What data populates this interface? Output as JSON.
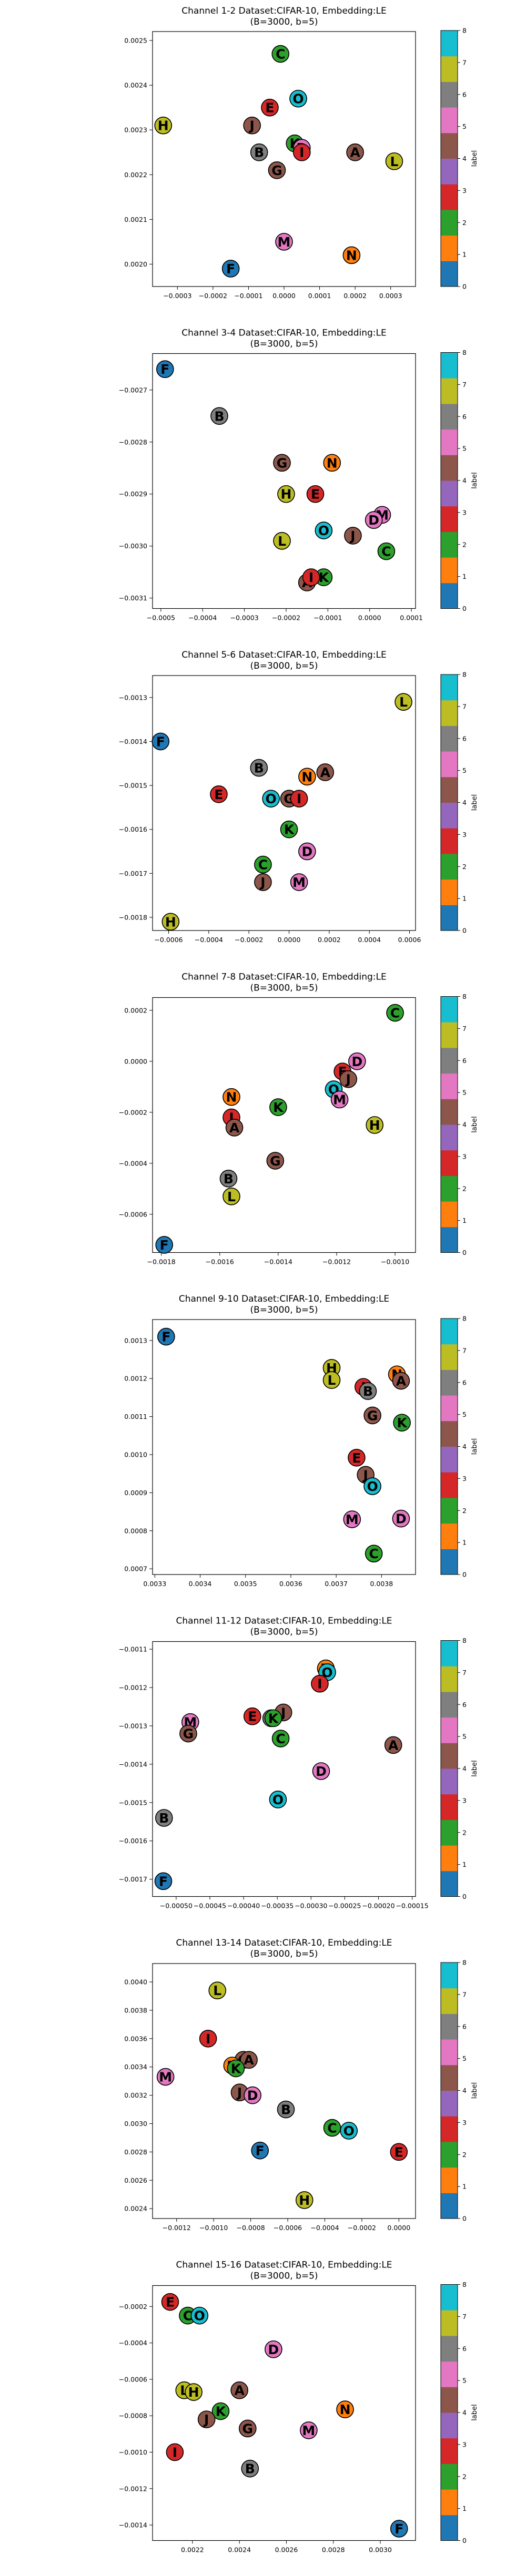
{
  "figure": {
    "colorbar_label": "label",
    "colorbar_ticks": [
      "0",
      "1",
      "2",
      "3",
      "4",
      "5",
      "6",
      "7",
      "8"
    ]
  },
  "label_colors": {
    "A": "#8c564b",
    "B": "#7f7f7f",
    "C": "#2ca02c",
    "D": "#e377c2",
    "E": "#d62728",
    "F": "#1f77b4",
    "G": "#8c564b",
    "H": "#bcbd22",
    "I": "#d62728",
    "J": "#8c564b",
    "K": "#2ca02c",
    "L": "#bcbd22",
    "M": "#e377c2",
    "N": "#ff7f0e",
    "O": "#17becf"
  },
  "colorbar_colors": [
    "#1f77b4",
    "#ff7f0e",
    "#2ca02c",
    "#d62728",
    "#9467bd",
    "#8c564b",
    "#e377c2",
    "#7f7f7f",
    "#bcbd22",
    "#17becf"
  ],
  "chart_data": [
    {
      "type": "scatter",
      "title": "Channel 1-2 Dataset:CIFAR-10, Embedding:LE",
      "subtitle": "(B=3000, b=5)",
      "xlim": [
        -0.00037,
        0.00037
      ],
      "ylim": [
        0.00195,
        0.00252
      ],
      "xticks": [
        -0.0003,
        -0.0002,
        -0.0001,
        0.0,
        0.0001,
        0.0002,
        0.0003
      ],
      "xtick_labels": [
        "−0.0003",
        "−0.0002",
        "−0.0001",
        "0.0000",
        "0.0001",
        "0.0002",
        "0.0003"
      ],
      "yticks": [
        0.002,
        0.0021,
        0.0022,
        0.0023,
        0.0024,
        0.0025
      ],
      "ytick_labels": [
        "0.0020",
        "0.0021",
        "0.0022",
        "0.0023",
        "0.0024",
        "0.0025"
      ],
      "points": [
        {
          "label": "C",
          "x": -1e-05,
          "y": 0.00247
        },
        {
          "label": "O",
          "x": 4e-05,
          "y": 0.00237
        },
        {
          "label": "E",
          "x": -4e-05,
          "y": 0.00235
        },
        {
          "label": "H",
          "x": -0.00034,
          "y": 0.00231
        },
        {
          "label": "J",
          "x": -9e-05,
          "y": 0.00231
        },
        {
          "label": "K",
          "x": 3e-05,
          "y": 0.00227
        },
        {
          "label": "D",
          "x": 5e-05,
          "y": 0.00226
        },
        {
          "label": "I",
          "x": 5e-05,
          "y": 0.00225
        },
        {
          "label": "A",
          "x": 0.0002,
          "y": 0.00225
        },
        {
          "label": "B",
          "x": -7e-05,
          "y": 0.00225
        },
        {
          "label": "L",
          "x": 0.00031,
          "y": 0.00223
        },
        {
          "label": "G",
          "x": -2e-05,
          "y": 0.00221
        },
        {
          "label": "M",
          "x": -0.0,
          "y": 0.00205
        },
        {
          "label": "N",
          "x": 0.00019,
          "y": 0.00202
        },
        {
          "label": "F",
          "x": -0.00015,
          "y": 0.00199
        }
      ]
    },
    {
      "type": "scatter",
      "title": "Channel 3-4 Dataset:CIFAR-10, Embedding:LE",
      "subtitle": "(B=3000, b=5)",
      "xlim": [
        -0.00052,
        0.00011
      ],
      "ylim": [
        -0.00312,
        -0.00263
      ],
      "xticks": [
        -0.0005,
        -0.0004,
        -0.0003,
        -0.0002,
        -0.0001,
        0.0,
        0.0001
      ],
      "xtick_labels": [
        "−0.0005",
        "−0.0004",
        "−0.0003",
        "−0.0002",
        "−0.0001",
        "0.0000",
        "0.0001"
      ],
      "yticks": [
        -0.0031,
        -0.003,
        -0.0029,
        -0.0028,
        -0.0027
      ],
      "ytick_labels": [
        "−0.0031",
        "−0.0030",
        "−0.0029",
        "−0.0028",
        "−0.0027"
      ],
      "points": [
        {
          "label": "F",
          "x": -0.00049,
          "y": -0.00266
        },
        {
          "label": "B",
          "x": -0.00036,
          "y": -0.00275
        },
        {
          "label": "G",
          "x": -0.00021,
          "y": -0.00284
        },
        {
          "label": "N",
          "x": -9e-05,
          "y": -0.00284
        },
        {
          "label": "H",
          "x": -0.0002,
          "y": -0.0029
        },
        {
          "label": "E",
          "x": -0.00013,
          "y": -0.0029
        },
        {
          "label": "M",
          "x": 3e-05,
          "y": -0.00294
        },
        {
          "label": "D",
          "x": 1e-05,
          "y": -0.00295
        },
        {
          "label": "O",
          "x": -0.00011,
          "y": -0.00297
        },
        {
          "label": "J",
          "x": -4e-05,
          "y": -0.00298
        },
        {
          "label": "L",
          "x": -0.00021,
          "y": -0.00299
        },
        {
          "label": "C",
          "x": 4e-05,
          "y": -0.00301
        },
        {
          "label": "K",
          "x": -0.00011,
          "y": -0.00306
        },
        {
          "label": "A",
          "x": -0.00015,
          "y": -0.00307
        },
        {
          "label": "I",
          "x": -0.00014,
          "y": -0.00306
        }
      ]
    },
    {
      "type": "scatter",
      "title": "Channel 5-6 Dataset:CIFAR-10, Embedding:LE",
      "subtitle": "(B=3000, b=5)",
      "xlim": [
        -0.00068,
        0.00063
      ],
      "ylim": [
        -0.00183,
        -0.00125
      ],
      "xticks": [
        -0.0006,
        -0.0004,
        -0.0002,
        0.0,
        0.0002,
        0.0004,
        0.0006
      ],
      "xtick_labels": [
        "−0.0006",
        "−0.0004",
        "−0.0002",
        "0.0000",
        "0.0002",
        "0.0004",
        "0.0006"
      ],
      "yticks": [
        -0.0018,
        -0.0017,
        -0.0016,
        -0.0015,
        -0.0014,
        -0.0013
      ],
      "ytick_labels": [
        "−0.0018",
        "−0.0017",
        "−0.0016",
        "−0.0015",
        "−0.0014",
        "−0.0013"
      ],
      "points": [
        {
          "label": "L",
          "x": 0.00057,
          "y": -0.00131
        },
        {
          "label": "F",
          "x": -0.00064,
          "y": -0.0014
        },
        {
          "label": "B",
          "x": -0.00015,
          "y": -0.00146
        },
        {
          "label": "N",
          "x": 9e-05,
          "y": -0.00148
        },
        {
          "label": "A",
          "x": 0.00018,
          "y": -0.00147
        },
        {
          "label": "E",
          "x": -0.00035,
          "y": -0.00152
        },
        {
          "label": "O",
          "x": -9e-05,
          "y": -0.00153
        },
        {
          "label": "G",
          "x": 0.0,
          "y": -0.00153
        },
        {
          "label": "I",
          "x": 5e-05,
          "y": -0.00153
        },
        {
          "label": "K",
          "x": 0.0,
          "y": -0.0016
        },
        {
          "label": "D",
          "x": 9e-05,
          "y": -0.00165
        },
        {
          "label": "C",
          "x": -0.00013,
          "y": -0.00168
        },
        {
          "label": "M",
          "x": 5e-05,
          "y": -0.00172
        },
        {
          "label": "J",
          "x": -0.00013,
          "y": -0.00172
        },
        {
          "label": "H",
          "x": -0.00059,
          "y": -0.00181
        }
      ]
    },
    {
      "type": "scatter",
      "title": "Channel 7-8 Dataset:CIFAR-10, Embedding:LE",
      "subtitle": "(B=3000, b=5)",
      "xlim": [
        -0.00183,
        -0.00093
      ],
      "ylim": [
        -0.00075,
        0.00025
      ],
      "xticks": [
        -0.0018,
        -0.0016,
        -0.0014,
        -0.0012,
        -0.001
      ],
      "xtick_labels": [
        "−0.0018",
        "−0.0016",
        "−0.0014",
        "−0.0012",
        "−0.0010"
      ],
      "yticks": [
        -0.0006,
        -0.0004,
        -0.0002,
        0.0,
        0.0002
      ],
      "ytick_labels": [
        "−0.0006",
        "−0.0004",
        "−0.0002",
        "0.0000",
        "0.0002"
      ],
      "points": [
        {
          "label": "C",
          "x": -0.001,
          "y": 0.00019
        },
        {
          "label": "D",
          "x": -0.00113,
          "y": 0.0
        },
        {
          "label": "E",
          "x": -0.00118,
          "y": -4e-05
        },
        {
          "label": "J",
          "x": -0.00116,
          "y": -7e-05
        },
        {
          "label": "O",
          "x": -0.00121,
          "y": -0.00011
        },
        {
          "label": "M",
          "x": -0.00119,
          "y": -0.00015
        },
        {
          "label": "N",
          "x": -0.00156,
          "y": -0.00014
        },
        {
          "label": "K",
          "x": -0.0014,
          "y": -0.00018
        },
        {
          "label": "H",
          "x": -0.00107,
          "y": -0.00025
        },
        {
          "label": "I",
          "x": -0.00156,
          "y": -0.00022
        },
        {
          "label": "A",
          "x": -0.00155,
          "y": -0.00026
        },
        {
          "label": "G",
          "x": -0.00141,
          "y": -0.00039
        },
        {
          "label": "B",
          "x": -0.00157,
          "y": -0.00046
        },
        {
          "label": "L",
          "x": -0.00156,
          "y": -0.00053
        },
        {
          "label": "F",
          "x": -0.00179,
          "y": -0.00072
        }
      ]
    },
    {
      "type": "scatter",
      "title": "Channel 9-10 Dataset:CIFAR-10, Embedding:LE",
      "subtitle": "(B=3000, b=5)",
      "xlim": [
        0.003295,
        0.003875
      ],
      "ylim": [
        0.000685,
        0.001355
      ],
      "xticks": [
        0.0033,
        0.0034,
        0.0035,
        0.0036,
        0.0037,
        0.0038
      ],
      "xtick_labels": [
        "0.0033",
        "0.0034",
        "0.0035",
        "0.0036",
        "0.0037",
        "0.0038"
      ],
      "yticks": [
        0.0007,
        0.0008,
        0.0009,
        0.001,
        0.0011,
        0.0012,
        0.0013
      ],
      "ytick_labels": [
        "0.0007",
        "0.0008",
        "0.0009",
        "0.0010",
        "0.0011",
        "0.0012",
        "0.0013"
      ],
      "points": [
        {
          "label": "F",
          "x": 0.003325,
          "y": 0.00131
        },
        {
          "label": "H",
          "x": 0.00369,
          "y": 0.001228
        },
        {
          "label": "N",
          "x": 0.003834,
          "y": 0.001211
        },
        {
          "label": "A",
          "x": 0.003843,
          "y": 0.001194
        },
        {
          "label": "L",
          "x": 0.00369,
          "y": 0.001196
        },
        {
          "label": "I",
          "x": 0.00376,
          "y": 0.001178
        },
        {
          "label": "B",
          "x": 0.00377,
          "y": 0.001167
        },
        {
          "label": "G",
          "x": 0.00378,
          "y": 0.001103
        },
        {
          "label": "K",
          "x": 0.003845,
          "y": 0.001084
        },
        {
          "label": "E",
          "x": 0.003745,
          "y": 0.000992
        },
        {
          "label": "J",
          "x": 0.003765,
          "y": 0.000947
        },
        {
          "label": "O",
          "x": 0.00378,
          "y": 0.000917
        },
        {
          "label": "M",
          "x": 0.003735,
          "y": 0.00083
        },
        {
          "label": "D",
          "x": 0.003843,
          "y": 0.000832
        },
        {
          "label": "C",
          "x": 0.003783,
          "y": 0.00074
        }
      ]
    },
    {
      "type": "scatter",
      "title": "Channel 11-12 Dataset:CIFAR-10, Embedding:LE",
      "subtitle": "(B=3000, b=5)",
      "xlim": [
        -0.000535,
        -0.000145
      ],
      "ylim": [
        -0.001745,
        -0.00108
      ],
      "xticks": [
        -0.0005,
        -0.00045,
        -0.0004,
        -0.00035,
        -0.0003,
        -0.00025,
        -0.0002,
        -0.00015
      ],
      "xtick_labels": [
        "−0.00050",
        "−0.00045",
        "−0.00040",
        "−0.00035",
        "−0.00030",
        "−0.00025",
        "−0.00020",
        "−0.00015"
      ],
      "yticks": [
        -0.0017,
        -0.0016,
        -0.0015,
        -0.0014,
        -0.0013,
        -0.0012,
        -0.0011
      ],
      "ytick_labels": [
        "−0.0017",
        "−0.0016",
        "−0.0015",
        "−0.0014",
        "−0.0013",
        "−0.0012",
        "−0.0011"
      ],
      "points": [
        {
          "label": "N",
          "x": -0.000278,
          "y": -0.00115
        },
        {
          "label": "O",
          "x": -0.000276,
          "y": -0.00116
        },
        {
          "label": "I",
          "x": -0.000287,
          "y": -0.00119
        },
        {
          "label": "J",
          "x": -0.000341,
          "y": -0.001265
        },
        {
          "label": "E",
          "x": -0.000387,
          "y": -0.001275
        },
        {
          "label": "B",
          "x": -0.000359,
          "y": -0.00128
        },
        {
          "label": "K",
          "x": -0.000356,
          "y": -0.00128
        },
        {
          "label": "M",
          "x": -0.000479,
          "y": -0.00129
        },
        {
          "label": "G",
          "x": -0.000482,
          "y": -0.00132
        },
        {
          "label": "C",
          "x": -0.000345,
          "y": -0.001333
        },
        {
          "label": "A",
          "x": -0.000178,
          "y": -0.00135
        },
        {
          "label": "D",
          "x": -0.000285,
          "y": -0.001418
        },
        {
          "label": "O",
          "x": -0.000349,
          "y": -0.001492
        },
        {
          "label": "B",
          "x": -0.000518,
          "y": -0.00154
        },
        {
          "label": "F",
          "x": -0.000519,
          "y": -0.001705
        }
      ]
    },
    {
      "type": "scatter",
      "title": "Channel 13-14 Dataset:CIFAR-10, Embedding:LE",
      "subtitle": "(B=3000, b=5)",
      "xlim": [
        -0.00133,
        9e-05
      ],
      "ylim": [
        0.00233,
        0.00413
      ],
      "xticks": [
        -0.0012,
        -0.001,
        -0.0008,
        -0.0006,
        -0.0004,
        -0.0002,
        0.0
      ],
      "xtick_labels": [
        "−0.0012",
        "−0.0010",
        "−0.0008",
        "−0.0006",
        "−0.0004",
        "−0.0002",
        "0.0000"
      ],
      "yticks": [
        0.0024,
        0.0026,
        0.0028,
        0.003,
        0.0032,
        0.0034,
        0.0036,
        0.0038,
        0.004
      ],
      "ytick_labels": [
        "0.0024",
        "0.0026",
        "0.0028",
        "0.0030",
        "0.0032",
        "0.0034",
        "0.0036",
        "0.0038",
        "0.0040"
      ],
      "points": [
        {
          "label": "L",
          "x": -0.00098,
          "y": 0.00394
        },
        {
          "label": "I",
          "x": -0.00103,
          "y": 0.0036
        },
        {
          "label": "G",
          "x": -0.00084,
          "y": 0.00345
        },
        {
          "label": "A",
          "x": -0.00081,
          "y": 0.00345
        },
        {
          "label": "N",
          "x": -0.0009,
          "y": 0.00341
        },
        {
          "label": "K",
          "x": -0.00088,
          "y": 0.00339
        },
        {
          "label": "M",
          "x": -0.00126,
          "y": 0.00333
        },
        {
          "label": "J",
          "x": -0.00086,
          "y": 0.00322
        },
        {
          "label": "D",
          "x": -0.00079,
          "y": 0.0032
        },
        {
          "label": "B",
          "x": -0.00061,
          "y": 0.0031
        },
        {
          "label": "C",
          "x": -0.00036,
          "y": 0.00297
        },
        {
          "label": "O",
          "x": -0.00027,
          "y": 0.00295
        },
        {
          "label": "F",
          "x": -0.00075,
          "y": 0.00281
        },
        {
          "label": "E",
          "x": -0.0,
          "y": 0.0028
        },
        {
          "label": "H",
          "x": -0.00051,
          "y": 0.00246
        }
      ]
    },
    {
      "type": "scatter",
      "title": "Channel 15-16 Dataset:CIFAR-10, Embedding:LE",
      "subtitle": "(B=3000, b=5)",
      "xlim": [
        0.00203,
        0.00315
      ],
      "ylim": [
        -0.001485,
        -8.5e-05
      ],
      "xticks": [
        0.0022,
        0.0024,
        0.0026,
        0.0028,
        0.003
      ],
      "xtick_labels": [
        "0.0022",
        "0.0024",
        "0.0026",
        "0.0028",
        "0.0030"
      ],
      "yticks": [
        -0.0014,
        -0.0012,
        -0.001,
        -0.0008,
        -0.0006,
        -0.0004,
        -0.0002
      ],
      "ytick_labels": [
        "−0.0014",
        "−0.0012",
        "−0.0010",
        "−0.0008",
        "−0.0006",
        "−0.0004",
        "−0.0002"
      ],
      "points": [
        {
          "label": "E",
          "x": 0.002105,
          "y": -0.000175
        },
        {
          "label": "C",
          "x": 0.00218,
          "y": -0.00025
        },
        {
          "label": "O",
          "x": 0.00223,
          "y": -0.00025
        },
        {
          "label": "D",
          "x": 0.002545,
          "y": -0.000435
        },
        {
          "label": "L",
          "x": 0.002165,
          "y": -0.00066
        },
        {
          "label": "H",
          "x": 0.002205,
          "y": -0.00067
        },
        {
          "label": "A",
          "x": 0.0024,
          "y": -0.00066
        },
        {
          "label": "K",
          "x": 0.00232,
          "y": -0.000775
        },
        {
          "label": "N",
          "x": 0.00285,
          "y": -0.000765
        },
        {
          "label": "J",
          "x": 0.00226,
          "y": -0.00082
        },
        {
          "label": "G",
          "x": 0.002435,
          "y": -0.00087
        },
        {
          "label": "M",
          "x": 0.002695,
          "y": -0.00088
        },
        {
          "label": "I",
          "x": 0.002125,
          "y": -0.001
        },
        {
          "label": "B",
          "x": 0.002445,
          "y": -0.00109
        },
        {
          "label": "F",
          "x": 0.00308,
          "y": -0.00142
        }
      ]
    }
  ]
}
